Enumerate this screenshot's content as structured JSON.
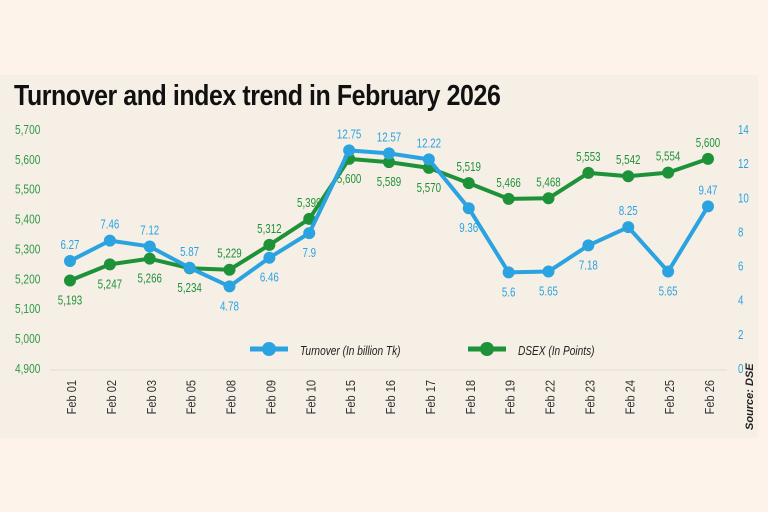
{
  "chart_data": {
    "type": "line",
    "title": "Turnover and index trend in February 2026",
    "categories": [
      "Feb 01",
      "Feb 02",
      "Feb 03",
      "Feb 05",
      "Feb 08",
      "Feb 09",
      "Feb 10",
      "Feb 15",
      "Feb 16",
      "Feb 17",
      "Feb 18",
      "Feb 19",
      "Feb 22",
      "Feb 23",
      "Feb 24",
      "Feb 25",
      "Feb 26"
    ],
    "series": [
      {
        "name": "Turnover (In billion Tk)",
        "axis": "right",
        "color": "#2aa3e0",
        "values": [
          6.27,
          7.46,
          7.12,
          5.87,
          4.78,
          6.46,
          7.9,
          12.75,
          12.57,
          12.22,
          9.36,
          5.6,
          5.65,
          7.18,
          8.25,
          5.65,
          9.47
        ],
        "labels": [
          "6.27",
          "7.46",
          "7.12",
          "5.87",
          "4.78",
          "6.46",
          "7.9",
          "12.75",
          "12.57",
          "12.22",
          "9.36",
          "5.6",
          "5.65",
          "7.18",
          "8.25",
          "5.65",
          "9.47"
        ]
      },
      {
        "name": "DSEX (In Points)",
        "axis": "left",
        "color": "#1e9238",
        "values": [
          5193,
          5247,
          5266,
          5234,
          5229,
          5312,
          5399,
          5600,
          5589,
          5570,
          5519,
          5466,
          5468,
          5553,
          5542,
          5554,
          5600
        ],
        "labels": [
          "5,193",
          "5,247",
          "5,266",
          "5,234",
          "5,229",
          "5,312",
          "5,399",
          "5,600",
          "5,589",
          "5,570",
          "5,519",
          "5,466",
          "5,468",
          "5,553",
          "5,542",
          "5,554",
          "5,600"
        ]
      }
    ],
    "y_left": {
      "range": [
        4900,
        5700
      ],
      "ticks": [
        "5,700",
        "5,600",
        "5,500",
        "5,400",
        "5,300",
        "5,200",
        "5,100",
        "5,000",
        "4,900"
      ],
      "color": "#2e9a48"
    },
    "y_right": {
      "range": [
        0,
        14
      ],
      "ticks": [
        "14",
        "12",
        "10",
        "8",
        "6",
        "4",
        "2",
        "0"
      ],
      "color": "#2aa3e0"
    },
    "legend": "bottom-center",
    "grid": false,
    "source": "Source: DSE"
  }
}
